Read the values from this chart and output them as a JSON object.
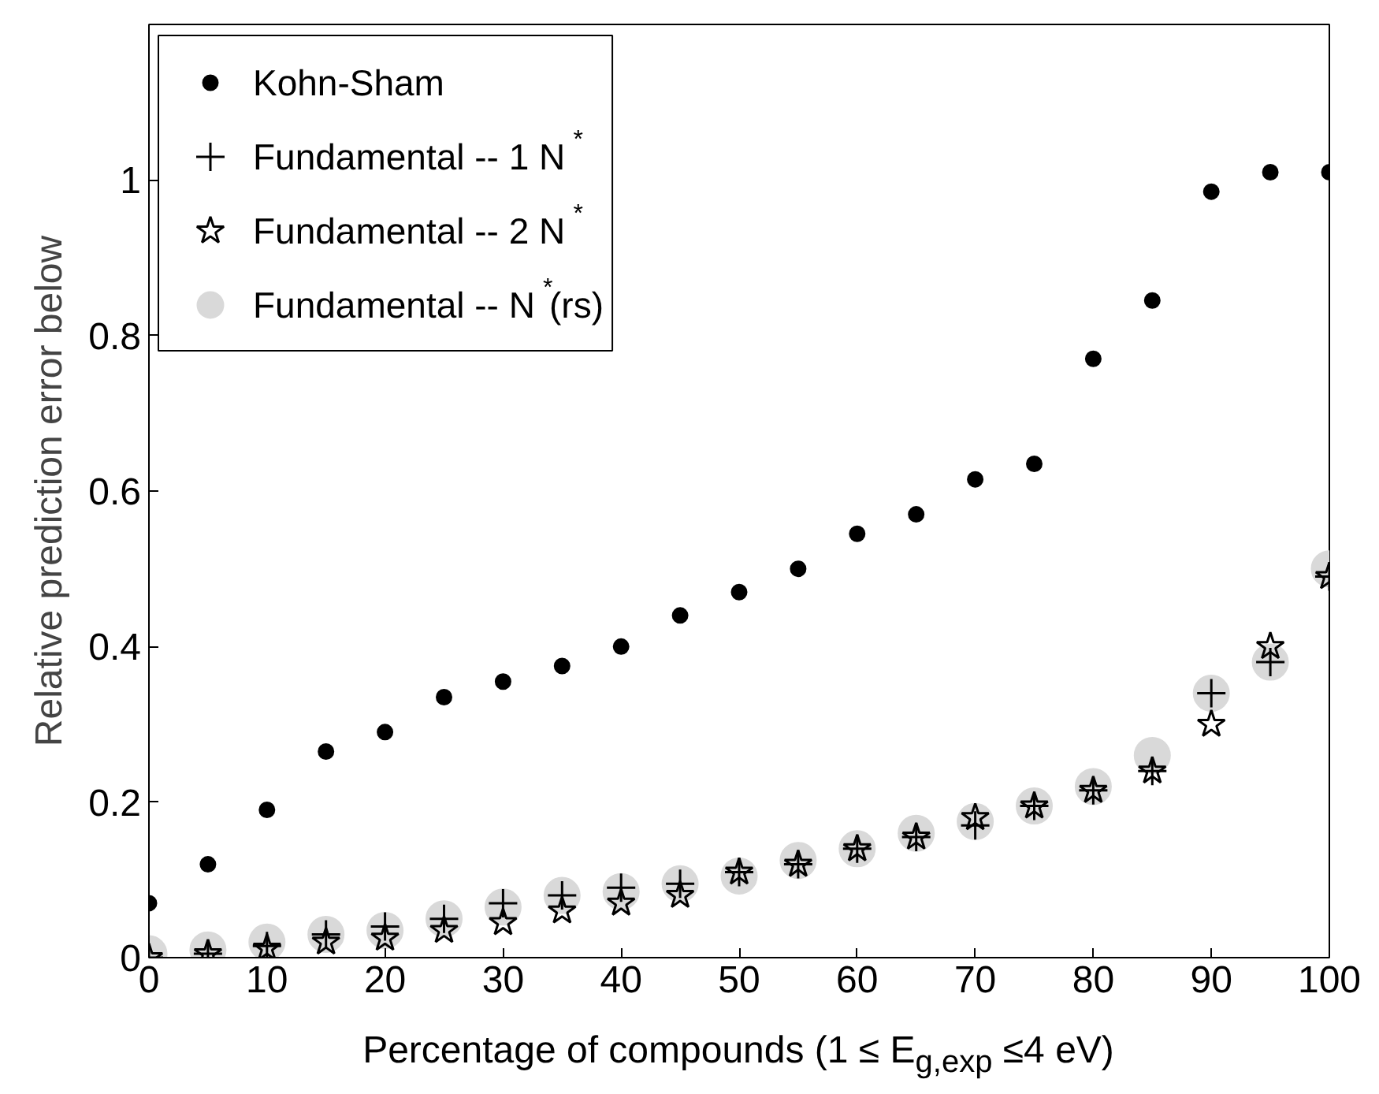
{
  "chart_data": {
    "type": "scatter",
    "xlabel": "Percentage of compounds (1 ≤ E$_{g,exp}$ ≤4 eV)",
    "ylabel": "Relative prediction error below",
    "xlim": [
      0,
      100
    ],
    "ylim": [
      0,
      1.2
    ],
    "xticks": [
      0,
      10,
      20,
      30,
      40,
      50,
      60,
      70,
      80,
      90,
      100
    ],
    "yticks": [
      0,
      0.2,
      0.4,
      0.6,
      0.8,
      1
    ],
    "legend": "top left",
    "x": [
      0,
      5,
      10,
      15,
      20,
      25,
      30,
      35,
      40,
      45,
      50,
      55,
      60,
      65,
      70,
      75,
      80,
      85,
      90,
      95,
      100
    ],
    "series": [
      {
        "name": "Kohn-Sham",
        "color": "#000000",
        "marker": "circle",
        "values": [
          0.07,
          0.12,
          0.19,
          0.265,
          0.29,
          0.335,
          0.355,
          0.375,
          0.4,
          0.44,
          0.47,
          0.5,
          0.545,
          0.57,
          0.615,
          0.635,
          0.77,
          0.845,
          0.985,
          1.01,
          1.01
        ]
      },
      {
        "name": "Fundamental -- 1 N$^{*}$",
        "color": "#000000",
        "marker": "cross",
        "values": [
          0.0,
          0.005,
          0.015,
          0.03,
          0.04,
          0.05,
          0.07,
          0.08,
          0.09,
          0.095,
          0.11,
          0.12,
          0.14,
          0.155,
          0.17,
          0.195,
          0.215,
          0.24,
          0.34,
          0.38,
          0.49
        ]
      },
      {
        "name": "Fundamental -- 2 N$^{*}$",
        "color": "#000000",
        "marker": "star",
        "values": [
          0.0,
          0.005,
          0.012,
          0.02,
          0.025,
          0.035,
          0.045,
          0.06,
          0.07,
          0.08,
          0.11,
          0.12,
          0.14,
          0.155,
          0.18,
          0.195,
          0.215,
          0.24,
          0.3,
          0.4,
          0.49
        ]
      },
      {
        "name": "Fundamental -- N$^{*}$(rs)",
        "color": "#d9d9d9",
        "marker": "circle",
        "values": [
          0.005,
          0.01,
          0.02,
          0.03,
          0.035,
          0.05,
          0.065,
          0.08,
          0.085,
          0.095,
          0.105,
          0.125,
          0.14,
          0.16,
          0.175,
          0.195,
          0.22,
          0.26,
          0.34,
          0.38,
          0.5
        ]
      }
    ]
  }
}
